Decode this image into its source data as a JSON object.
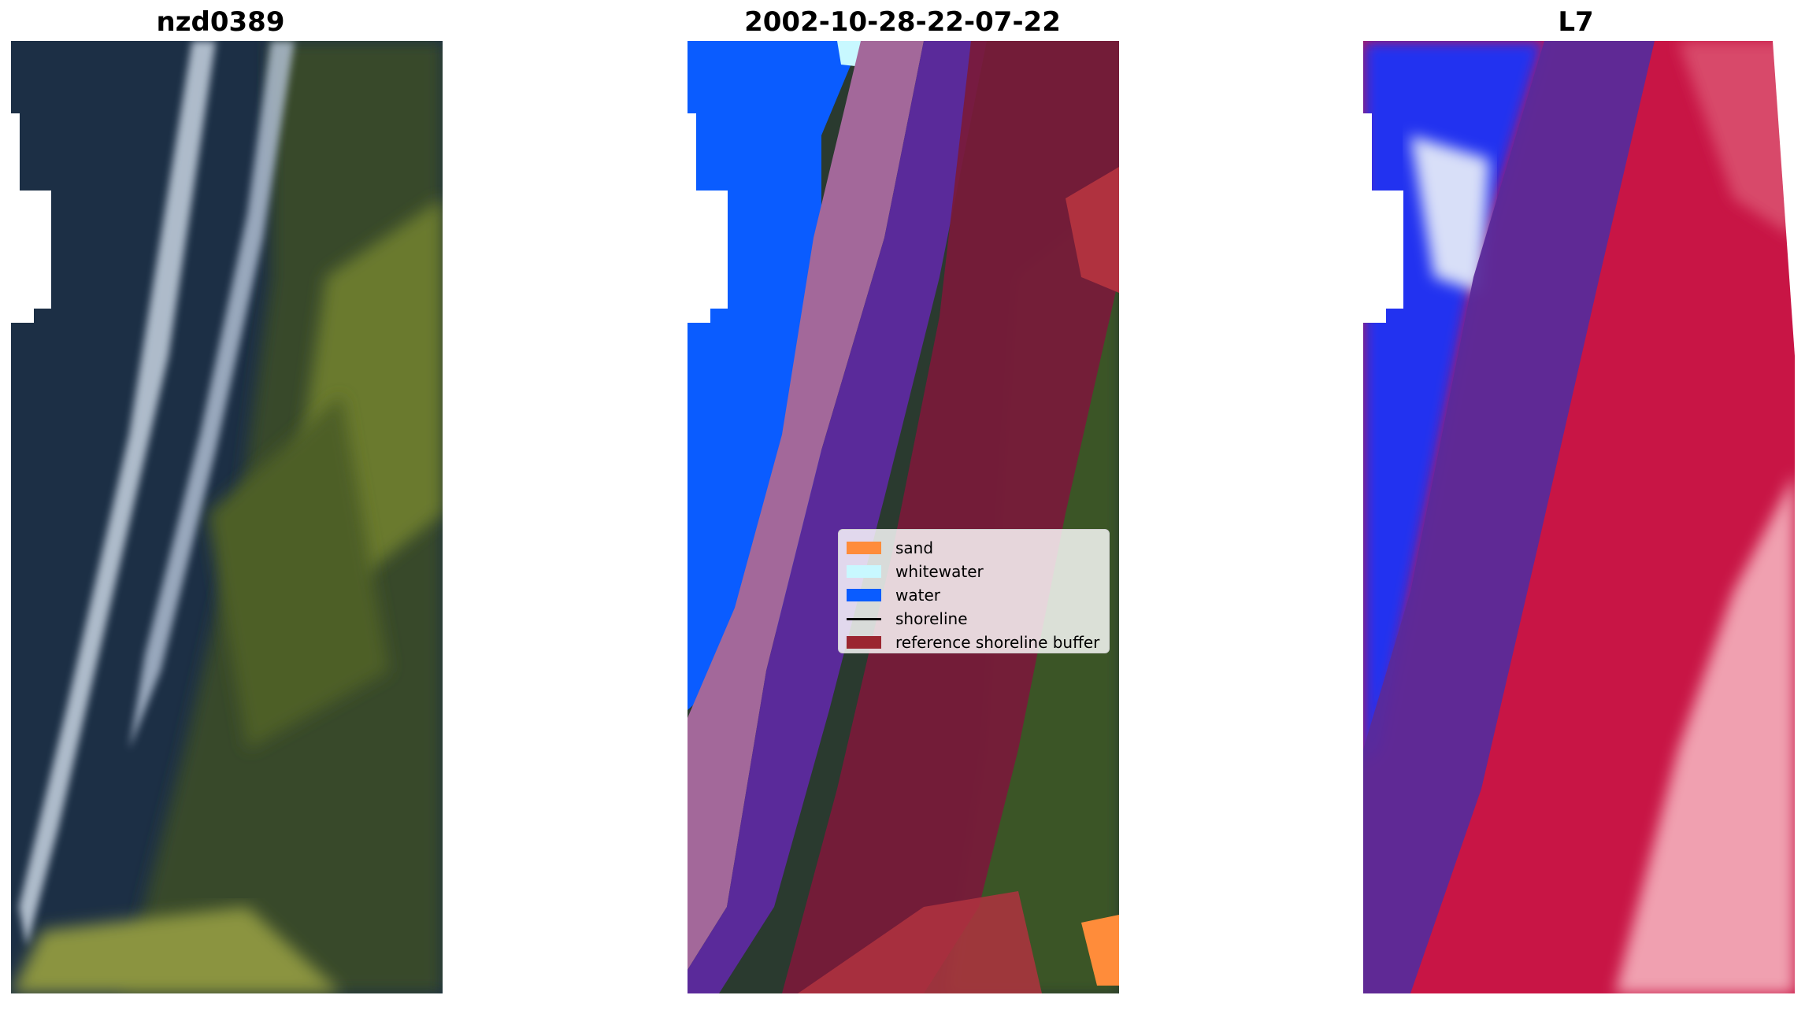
{
  "panels": [
    {
      "title": "nzd0389"
    },
    {
      "title": "2002-10-28-22-07-22"
    },
    {
      "title": "L7"
    }
  ],
  "legend": {
    "items": [
      {
        "label": "sand",
        "color": "#ff8c3a",
        "kind": "patch"
      },
      {
        "label": "whitewater",
        "color": "#c8f8ff",
        "kind": "patch"
      },
      {
        "label": "water",
        "color": "#0a5cff",
        "kind": "patch"
      },
      {
        "label": "shoreline",
        "color": "#000000",
        "kind": "line"
      },
      {
        "label": "reference shoreline buffer",
        "color": "#9b2630",
        "kind": "patch"
      }
    ]
  }
}
